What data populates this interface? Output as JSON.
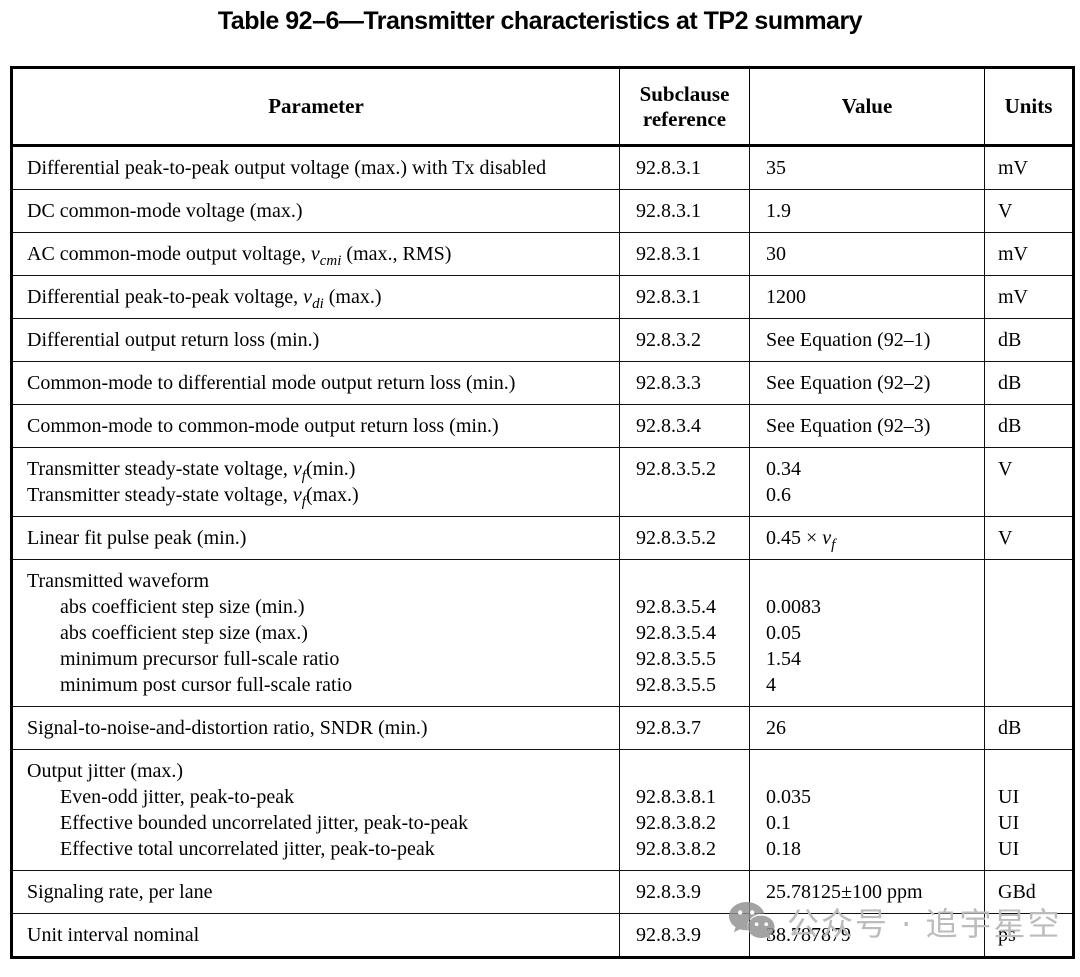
{
  "page": {
    "title": "Table 92–6—Transmitter characteristics at TP2 summary"
  },
  "table": {
    "headers": {
      "parameter": "Parameter",
      "subclause": "Subclause reference",
      "value": "Value",
      "units": "Units"
    },
    "rows": [
      {
        "param": [
          "Differential peak-to-peak output voltage (max.) with Tx disabled"
        ],
        "ref": [
          "92.8.3.1"
        ],
        "value": [
          "35"
        ],
        "units": [
          "mV"
        ]
      },
      {
        "param": [
          "DC common-mode voltage (max.)"
        ],
        "ref": [
          "92.8.3.1"
        ],
        "value": [
          "1.9"
        ],
        "units": [
          "V"
        ]
      },
      {
        "param": [
          {
            "segs": [
              "AC common-mode output voltage, ",
              {
                "t": "v",
                "s": "i"
              },
              {
                "t": "cmi",
                "s": "sub"
              },
              " (max., RMS)"
            ]
          }
        ],
        "ref": [
          "92.8.3.1"
        ],
        "value": [
          "30"
        ],
        "units": [
          "mV"
        ]
      },
      {
        "param": [
          {
            "segs": [
              "Differential peak-to-peak voltage, ",
              {
                "t": "v",
                "s": "i"
              },
              {
                "t": "di",
                "s": "sub"
              },
              " (max.)"
            ]
          }
        ],
        "ref": [
          "92.8.3.1"
        ],
        "value": [
          "1200"
        ],
        "units": [
          "mV"
        ]
      },
      {
        "param": [
          "Differential output return loss (min.)"
        ],
        "ref": [
          "92.8.3.2"
        ],
        "value": [
          "See Equation (92–1)"
        ],
        "units": [
          "dB"
        ]
      },
      {
        "param": [
          "Common-mode to differential mode output return loss (min.)"
        ],
        "ref": [
          "92.8.3.3"
        ],
        "value": [
          "See Equation (92–2)"
        ],
        "units": [
          "dB"
        ]
      },
      {
        "param": [
          "Common-mode to common-mode output return loss (min.)"
        ],
        "ref": [
          "92.8.3.4"
        ],
        "value": [
          "See Equation (92–3)"
        ],
        "units": [
          "dB"
        ]
      },
      {
        "param": [
          {
            "segs": [
              "Transmitter steady-state voltage, ",
              {
                "t": "v",
                "s": "i"
              },
              {
                "t": "f",
                "s": "sub"
              },
              "(min.)"
            ]
          },
          {
            "segs": [
              "Transmitter steady-state voltage, ",
              {
                "t": "v",
                "s": "i"
              },
              {
                "t": "f",
                "s": "sub"
              },
              "(max.)"
            ]
          }
        ],
        "ref": [
          "92.8.3.5.2",
          ""
        ],
        "value": [
          "0.34",
          "0.6"
        ],
        "units": [
          "V",
          ""
        ]
      },
      {
        "param": [
          "Linear fit pulse peak (min.)"
        ],
        "ref": [
          "92.8.3.5.2"
        ],
        "value": [
          {
            "segs": [
              "0.45 × ",
              {
                "t": "v",
                "s": "i"
              },
              {
                "t": "f",
                "s": "sub"
              }
            ]
          }
        ],
        "units": [
          "V"
        ]
      },
      {
        "param": [
          "Transmitted waveform",
          {
            "indent": true,
            "segs": [
              "abs coefficient step size (min.)"
            ]
          },
          {
            "indent": true,
            "segs": [
              "abs coefficient step size (max.)"
            ]
          },
          {
            "indent": true,
            "segs": [
              "minimum precursor full-scale ratio"
            ]
          },
          {
            "indent": true,
            "segs": [
              "minimum post cursor full-scale ratio"
            ]
          }
        ],
        "ref": [
          "",
          "92.8.3.5.4",
          "92.8.3.5.4",
          "92.8.3.5.5",
          "92.8.3.5.5"
        ],
        "value": [
          "",
          "0.0083",
          "0.05",
          "1.54",
          "4"
        ],
        "units": [
          "",
          "",
          "",
          "",
          ""
        ]
      },
      {
        "param": [
          "Signal-to-noise-and-distortion ratio, SNDR (min.)"
        ],
        "ref": [
          "92.8.3.7"
        ],
        "value": [
          "26"
        ],
        "units": [
          "dB"
        ]
      },
      {
        "param": [
          "Output jitter (max.)",
          {
            "indent": true,
            "segs": [
              "Even-odd jitter, peak-to-peak"
            ]
          },
          {
            "indent": true,
            "segs": [
              "Effective bounded uncorrelated jitter, peak-to-peak"
            ]
          },
          {
            "indent": true,
            "segs": [
              "Effective total uncorrelated jitter, peak-to-peak"
            ]
          }
        ],
        "ref": [
          "",
          "92.8.3.8.1",
          "92.8.3.8.2",
          "92.8.3.8.2"
        ],
        "value": [
          "",
          "0.035",
          "0.1",
          "0.18"
        ],
        "units": [
          "",
          "UI",
          "UI",
          "UI"
        ]
      },
      {
        "param": [
          "Signaling rate, per lane"
        ],
        "ref": [
          "92.8.3.9"
        ],
        "value": [
          "25.78125±100 ppm"
        ],
        "units": [
          "GBd"
        ]
      },
      {
        "param": [
          "Unit interval nominal"
        ],
        "ref": [
          "92.8.3.9"
        ],
        "value": [
          "38.787879"
        ],
        "units": [
          "ps"
        ]
      }
    ]
  },
  "watermark": {
    "icon": "wechat-icon",
    "text": "公众号 · 追宇星空",
    "text_color": "#bcbcbc",
    "icon_color": "#8f8f8f"
  },
  "colors": {
    "background": "#ffffff",
    "text": "#000000",
    "border": "#000000"
  }
}
